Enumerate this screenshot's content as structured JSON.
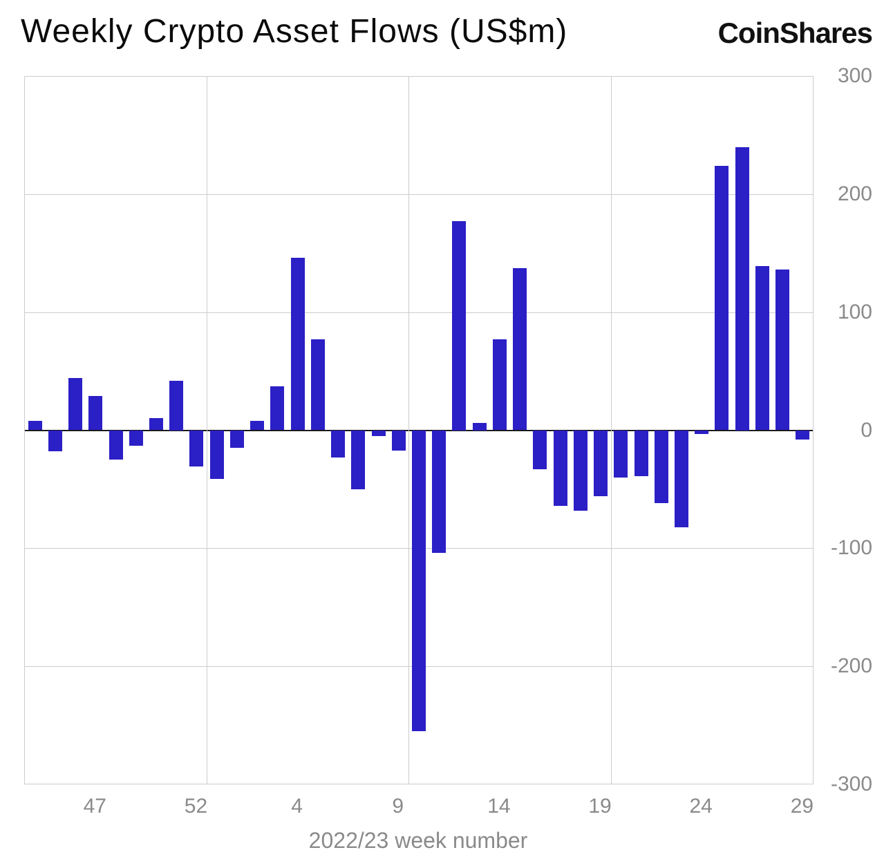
{
  "header": {
    "title": "Weekly Crypto Asset Flows (US$m)",
    "logo": "CoinShares"
  },
  "chart_data": {
    "type": "bar",
    "title": "Weekly Crypto Asset Flows (US$m)",
    "xlabel": "2022/23 week number",
    "ylabel": "",
    "ylim": [
      -300,
      300
    ],
    "bar_color": "#2b1fc6",
    "grid_color": "#cccccc",
    "axis_color": "#1a1a1a",
    "tick_color": "#8a8a8a",
    "categories": [
      "44",
      "45",
      "46",
      "47",
      "48",
      "49",
      "50",
      "51",
      "52",
      "53",
      "1",
      "2",
      "3",
      "4",
      "5",
      "6",
      "7",
      "8",
      "9",
      "10",
      "11",
      "12",
      "13",
      "14",
      "15",
      "16",
      "17",
      "18",
      "19",
      "20",
      "21",
      "22",
      "23",
      "24",
      "25",
      "26",
      "27",
      "28",
      "29"
    ],
    "values": [
      8,
      -18,
      44,
      29,
      -25,
      -13,
      10,
      42,
      -31,
      -41,
      -15,
      8,
      37,
      146,
      77,
      -23,
      -50,
      -5,
      -17,
      -255,
      -104,
      177,
      6,
      77,
      137,
      -33,
      -64,
      -68,
      -56,
      -40,
      -39,
      -62,
      -82,
      -3,
      224,
      240,
      139,
      136,
      -8
    ],
    "yticks": [
      300,
      200,
      100,
      0,
      -100,
      -200,
      -300
    ],
    "xticks": [
      {
        "index": 3,
        "label": "47"
      },
      {
        "index": 8,
        "label": "52"
      },
      {
        "index": 13,
        "label": "4"
      },
      {
        "index": 18,
        "label": "9"
      },
      {
        "index": 23,
        "label": "14"
      },
      {
        "index": 28,
        "label": "19"
      },
      {
        "index": 33,
        "label": "24"
      },
      {
        "index": 38,
        "label": "29"
      }
    ],
    "grid": {
      "vlines_at_boundary": [
        9,
        19,
        29
      ]
    },
    "legend_position": "none"
  }
}
